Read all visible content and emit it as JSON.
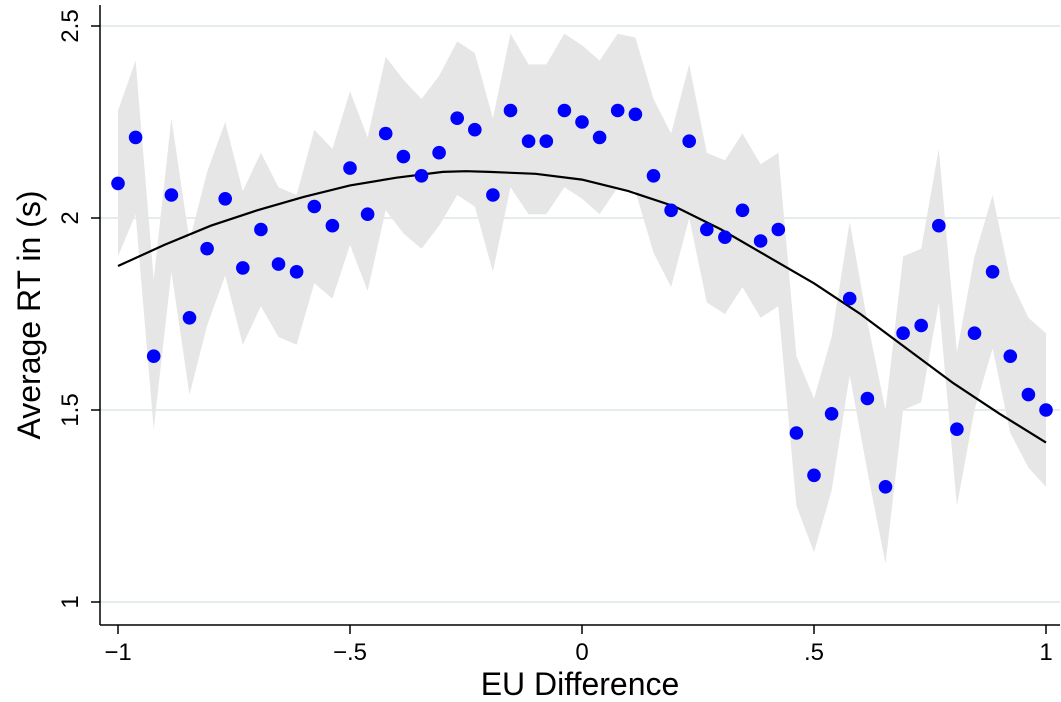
{
  "chart_data": {
    "type": "scatter",
    "xlabel": "EU Difference",
    "ylabel": "Average RT in (s)",
    "xlim": [
      -1,
      1
    ],
    "ylim": [
      1,
      2.5
    ],
    "xticks": [
      -1,
      -0.5,
      0,
      0.5,
      1
    ],
    "xtick_labels": [
      "−1",
      "−.5",
      "0",
      ".5",
      "1"
    ],
    "yticks": [
      1,
      1.5,
      2,
      2.5
    ],
    "ytick_labels": [
      "1",
      "1.5",
      "2",
      "2.5"
    ],
    "grid": "horizontal",
    "colors": {
      "points": "#0000ff",
      "fit_line": "#000000",
      "ci_band": "#e6e6e6",
      "grid": "#e3ecef"
    },
    "series": [
      {
        "type": "scatter",
        "x": [
          -1.0,
          -0.962,
          -0.923,
          -0.885,
          -0.846,
          -0.808,
          -0.769,
          -0.731,
          -0.692,
          -0.654,
          -0.615,
          -0.577,
          -0.538,
          -0.5,
          -0.462,
          -0.423,
          -0.385,
          -0.346,
          -0.308,
          -0.269,
          -0.231,
          -0.192,
          -0.154,
          -0.115,
          -0.077,
          -0.038,
          0.0,
          0.038,
          0.077,
          0.115,
          0.154,
          0.192,
          0.231,
          0.269,
          0.308,
          0.346,
          0.385,
          0.423,
          0.462,
          0.5,
          0.538,
          0.577,
          0.615,
          0.654,
          0.692,
          0.731,
          0.769,
          0.808,
          0.846,
          0.885,
          0.923,
          0.962,
          1.0
        ],
        "y": [
          2.09,
          2.21,
          1.64,
          2.06,
          1.74,
          1.92,
          2.05,
          1.87,
          1.97,
          1.88,
          1.86,
          2.03,
          1.98,
          2.13,
          2.01,
          2.22,
          2.16,
          2.11,
          2.17,
          2.26,
          2.23,
          2.06,
          2.28,
          2.2,
          2.2,
          2.28,
          2.25,
          2.21,
          2.28,
          2.27,
          2.11,
          2.02,
          2.2,
          1.97,
          1.95,
          2.02,
          1.94,
          1.97,
          1.44,
          1.33,
          1.49,
          1.79,
          1.53,
          1.3,
          1.7,
          1.72,
          1.98,
          1.45,
          1.7,
          1.86,
          1.64,
          1.54,
          1.5
        ]
      },
      {
        "type": "line",
        "x": [
          -1.0,
          -0.9,
          -0.8,
          -0.7,
          -0.6,
          -0.5,
          -0.4,
          -0.3,
          -0.25,
          -0.2,
          -0.1,
          0.0,
          0.1,
          0.2,
          0.3,
          0.4,
          0.5,
          0.6,
          0.7,
          0.8,
          0.9,
          1.0
        ],
        "y": [
          1.875,
          1.93,
          1.98,
          2.02,
          2.055,
          2.085,
          2.105,
          2.12,
          2.122,
          2.12,
          2.115,
          2.1,
          2.07,
          2.03,
          1.97,
          1.9,
          1.83,
          1.75,
          1.66,
          1.57,
          1.49,
          1.415
        ]
      },
      {
        "type": "band",
        "x": [
          -1.0,
          -0.962,
          -0.923,
          -0.885,
          -0.846,
          -0.808,
          -0.769,
          -0.731,
          -0.692,
          -0.654,
          -0.615,
          -0.577,
          -0.538,
          -0.5,
          -0.462,
          -0.423,
          -0.385,
          -0.346,
          -0.308,
          -0.269,
          -0.231,
          -0.192,
          -0.154,
          -0.115,
          -0.077,
          -0.038,
          0.0,
          0.038,
          0.077,
          0.115,
          0.154,
          0.192,
          0.231,
          0.269,
          0.308,
          0.346,
          0.385,
          0.423,
          0.462,
          0.5,
          0.538,
          0.577,
          0.615,
          0.654,
          0.692,
          0.731,
          0.769,
          0.808,
          0.846,
          0.885,
          0.923,
          0.962,
          1.0
        ],
        "upper": [
          2.28,
          2.41,
          1.84,
          2.26,
          1.94,
          2.12,
          2.25,
          2.07,
          2.17,
          2.08,
          2.06,
          2.23,
          2.18,
          2.33,
          2.21,
          2.42,
          2.36,
          2.31,
          2.37,
          2.46,
          2.43,
          2.26,
          2.48,
          2.4,
          2.4,
          2.48,
          2.45,
          2.41,
          2.48,
          2.47,
          2.31,
          2.22,
          2.4,
          2.17,
          2.15,
          2.22,
          2.14,
          2.17,
          1.64,
          1.53,
          1.69,
          1.99,
          1.73,
          1.5,
          1.9,
          1.92,
          2.18,
          1.65,
          1.9,
          2.06,
          1.84,
          1.74,
          1.7
        ],
        "lower": [
          1.9,
          2.01,
          1.45,
          1.86,
          1.54,
          1.72,
          1.85,
          1.67,
          1.77,
          1.69,
          1.67,
          1.83,
          1.79,
          1.93,
          1.81,
          2.02,
          1.96,
          1.92,
          1.98,
          2.06,
          2.03,
          1.86,
          2.08,
          2.01,
          2.01,
          2.08,
          2.05,
          2.01,
          2.08,
          2.07,
          1.91,
          1.82,
          2.0,
          1.78,
          1.75,
          1.82,
          1.74,
          1.77,
          1.25,
          1.13,
          1.29,
          1.59,
          1.34,
          1.1,
          1.5,
          1.52,
          1.78,
          1.25,
          1.5,
          1.66,
          1.44,
          1.35,
          1.3
        ]
      }
    ]
  }
}
